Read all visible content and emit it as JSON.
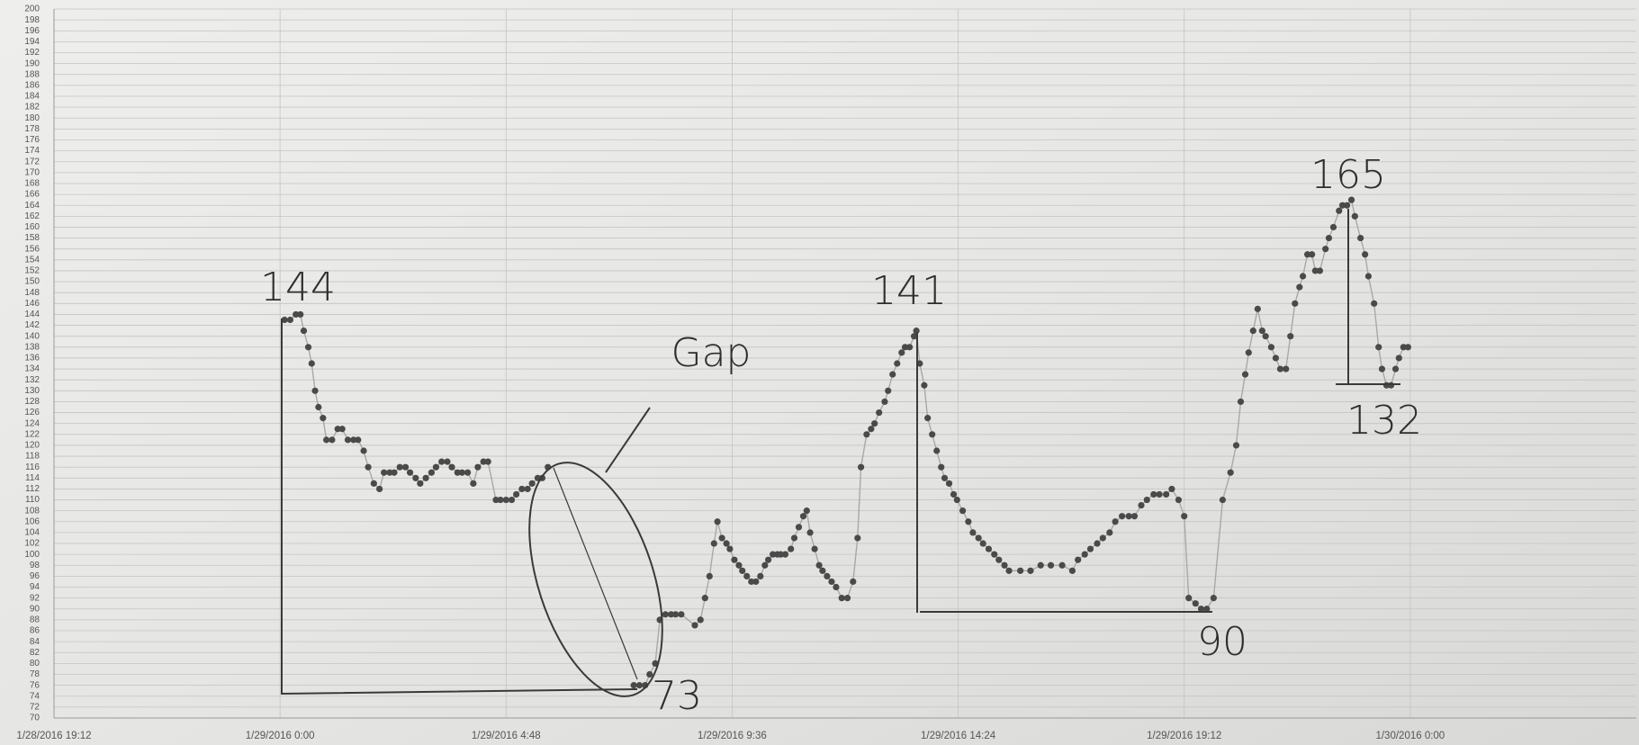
{
  "chart_data": {
    "type": "scatter",
    "x": [
      42398.004,
      42398.009,
      42398.014,
      42398.018,
      42398.021,
      42398.025,
      42398.028,
      42398.031,
      42398.034,
      42398.038,
      42398.041,
      42398.046,
      42398.051,
      42398.055,
      42398.06,
      42398.065,
      42398.069,
      42398.074,
      42398.078,
      42398.083,
      42398.088,
      42398.092,
      42398.097,
      42398.101,
      42398.106,
      42398.111,
      42398.115,
      42398.12,
      42398.124,
      42398.129,
      42398.134,
      42398.138,
      42398.143,
      42398.148,
      42398.152,
      42398.157,
      42398.161,
      42398.166,
      42398.171,
      42398.175,
      42398.18,
      42398.184,
      42398.191,
      42398.195,
      42398.2,
      42398.205,
      42398.209,
      42398.214,
      42398.219,
      42398.223,
      42398.228,
      42398.232,
      42398.237,
      42398.3,
      42398.313,
      42398.318,
      42398.323,
      42398.327,
      42398.332,
      42398.336,
      42398.341,
      42398.346,
      42398.35,
      42398.355,
      42398.367,
      42398.372,
      42398.376,
      42398.38,
      42398.384,
      42398.387,
      42398.391,
      42398.395,
      42398.398,
      42398.402,
      42398.406,
      42398.409,
      42398.413,
      42398.417,
      42398.421,
      42398.425,
      42398.429,
      42398.432,
      42398.436,
      42398.44,
      42398.443,
      42398.447,
      42398.452,
      42398.455,
      42398.459,
      42398.463,
      42398.466,
      42398.469,
      42398.473,
      42398.477,
      42398.48,
      42398.484,
      42398.488,
      42398.492,
      42398.497,
      42398.502,
      42398.507,
      42398.511,
      42398.514,
      42398.519,
      42398.523,
      42398.526,
      42398.53,
      42398.535,
      42398.538,
      42398.542,
      42398.546,
      42398.55,
      42398.553,
      42398.557,
      42398.561,
      42398.563,
      42398.566,
      42398.57,
      42398.573,
      42398.577,
      42398.581,
      42398.585,
      42398.588,
      42398.592,
      42398.596,
      42398.599,
      42398.604,
      42398.609,
      42398.613,
      42398.618,
      42398.622,
      42398.627,
      42398.632,
      42398.636,
      42398.641,
      42398.645,
      42398.655,
      42398.664,
      42398.673,
      42398.682,
      42398.692,
      42398.701,
      42398.706,
      42398.712,
      42398.717,
      42398.723,
      42398.728,
      42398.734,
      42398.739,
      42398.745,
      42398.751,
      42398.756,
      42398.762,
      42398.767,
      42398.773,
      42398.778,
      42398.784,
      42398.789,
      42398.795,
      42398.8,
      42398.804,
      42398.81,
      42398.815,
      42398.82,
      42398.826,
      42398.834,
      42398.841,
      42398.846,
      42398.85,
      42398.854,
      42398.857,
      42398.861,
      42398.865,
      42398.869,
      42398.872,
      42398.877,
      42398.881,
      42398.885,
      42398.89,
      42398.894,
      42398.898,
      42398.902,
      42398.905,
      42398.909,
      42398.913,
      42398.916,
      42398.92,
      42398.925,
      42398.928,
      42398.932,
      42398.937,
      42398.94,
      42398.944,
      42398.948,
      42398.951,
      42398.956,
      42398.96,
      42398.963,
      42398.968,
      42398.972,
      42398.975,
      42398.979,
      42398.983,
      42398.987,
      42398.99,
      42398.994,
      42398.998
    ],
    "values": [
      143,
      143,
      144,
      144,
      141,
      138,
      135,
      130,
      127,
      125,
      121,
      121,
      123,
      123,
      121,
      121,
      121,
      119,
      116,
      113,
      112,
      115,
      115,
      115,
      116,
      116,
      115,
      114,
      113,
      114,
      115,
      116,
      117,
      117,
      116,
      115,
      115,
      115,
      113,
      116,
      117,
      117,
      110,
      110,
      110,
      110,
      111,
      112,
      112,
      113,
      114,
      114,
      116,
      null,
      76,
      76,
      76,
      78,
      80,
      88,
      89,
      89,
      89,
      89,
      87,
      88,
      92,
      96,
      102,
      106,
      103,
      102,
      101,
      99,
      98,
      97,
      96,
      95,
      95,
      96,
      98,
      99,
      100,
      100,
      100,
      100,
      101,
      103,
      105,
      107,
      108,
      104,
      101,
      98,
      97,
      96,
      95,
      94,
      92,
      92,
      95,
      103,
      116,
      122,
      123,
      124,
      126,
      128,
      130,
      133,
      135,
      137,
      138,
      138,
      140,
      141,
      135,
      131,
      125,
      122,
      119,
      116,
      114,
      113,
      111,
      110,
      108,
      106,
      104,
      103,
      102,
      101,
      100,
      99,
      98,
      97,
      97,
      97,
      98,
      98,
      98,
      97,
      99,
      100,
      101,
      102,
      103,
      104,
      106,
      107,
      107,
      107,
      109,
      110,
      111,
      111,
      111,
      112,
      110,
      107,
      92,
      91,
      90,
      90,
      92,
      110,
      115,
      120,
      128,
      133,
      137,
      141,
      145,
      141,
      140,
      138,
      136,
      134,
      134,
      140,
      146,
      149,
      151,
      155,
      155,
      152,
      152,
      156,
      158,
      160,
      163,
      164,
      164,
      165,
      162,
      158,
      155,
      151,
      146,
      138,
      134,
      131,
      131,
      134,
      136,
      138,
      138
    ],
    "color": "#4a4a4a",
    "line_color": "#a8a8a8",
    "xlim": [
      42397.8,
      42399.2
    ],
    "xticks": [
      {
        "value": 42397.8,
        "label": "1/28/2016 19:12"
      },
      {
        "value": 42398,
        "label": "1/29/2016 0:00"
      },
      {
        "value": 42398.2,
        "label": "1/29/2016 4:48"
      },
      {
        "value": 42398.4,
        "label": "1/29/2016 9:36"
      },
      {
        "value": 42398.6,
        "label": "1/29/2016 14:24"
      },
      {
        "value": 42398.8,
        "label": "1/29/2016 19:12"
      },
      {
        "value": 42399,
        "label": "1/30/2016 0:00"
      }
    ],
    "ylim": [
      70,
      200
    ],
    "yticks": [
      70,
      72,
      74,
      76,
      78,
      80,
      82,
      84,
      86,
      88,
      90,
      92,
      94,
      96,
      98,
      100,
      102,
      104,
      106,
      108,
      110,
      112,
      114,
      116,
      118,
      120,
      122,
      124,
      126,
      128,
      130,
      132,
      134,
      136,
      138,
      140,
      142,
      144,
      146,
      148,
      150,
      152,
      154,
      156,
      158,
      160,
      162,
      164,
      166,
      168,
      170,
      172,
      174,
      176,
      178,
      180,
      182,
      184,
      186,
      188,
      190,
      192,
      194,
      196,
      198,
      200
    ],
    "grid": true,
    "annotations": [
      "144",
      "Gap",
      "141",
      "73",
      "90",
      "165",
      "132"
    ]
  }
}
